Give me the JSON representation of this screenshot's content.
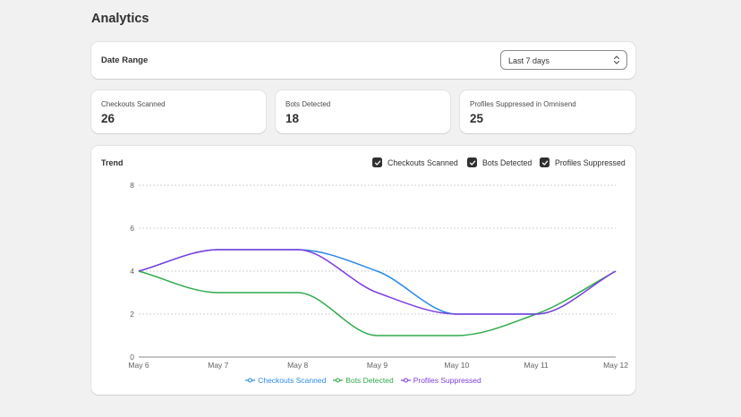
{
  "page": {
    "title": "Analytics"
  },
  "date_range": {
    "label": "Date Range",
    "selected": "Last 7 days"
  },
  "stats": [
    {
      "label": "Checkouts Scanned",
      "value": "26"
    },
    {
      "label": "Bots Detected",
      "value": "18"
    },
    {
      "label": "Profiles Suppressed in Omnisend",
      "value": "25"
    }
  ],
  "trend": {
    "title": "Trend",
    "toggles": [
      {
        "label": "Checkouts Scanned",
        "checked": true
      },
      {
        "label": "Bots Detected",
        "checked": true
      },
      {
        "label": "Profiles Suppressed",
        "checked": true
      }
    ]
  },
  "chart_data": {
    "type": "line",
    "x": [
      "May 6",
      "May 7",
      "May 8",
      "May 9",
      "May 10",
      "May 11",
      "May 12"
    ],
    "ylim": [
      0,
      8
    ],
    "yticks": [
      "0",
      "2",
      "4",
      "6",
      "8"
    ],
    "grid": true,
    "legend_position": "bottom",
    "series": [
      {
        "name": "Checkouts Scanned",
        "color": "#2c8ae8",
        "values": [
          4,
          5,
          5,
          4,
          2,
          2,
          4
        ]
      },
      {
        "name": "Bots Detected",
        "color": "#2faa4c",
        "values": [
          4,
          3,
          3,
          1,
          1,
          2,
          4
        ]
      },
      {
        "name": "Profiles Suppressed",
        "color": "#7f3fde",
        "values": [
          4,
          5,
          5,
          3,
          2,
          2,
          4
        ]
      }
    ]
  }
}
